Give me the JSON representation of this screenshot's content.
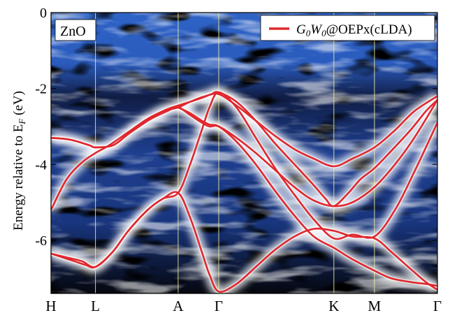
{
  "chart_data": {
    "type": "line",
    "panel_label": "ZnO",
    "ylabel": "Energy relative to E",
    "ylabel_sub": "F",
    "ylabel_unit": " (eV)",
    "ylim": [
      -7.4,
      0
    ],
    "yticks": [
      {
        "value": 0,
        "label": "0"
      },
      {
        "value": -2,
        "label": "-2"
      },
      {
        "value": -4,
        "label": "-4"
      },
      {
        "value": -6,
        "label": "-6"
      }
    ],
    "kpoints": [
      {
        "label": "H",
        "pos": 0.0
      },
      {
        "label": "L",
        "pos": 1.15
      },
      {
        "label": "A",
        "pos": 3.29
      },
      {
        "label": "Γ",
        "pos": 4.34
      },
      {
        "label": "K",
        "pos": 7.32
      },
      {
        "label": "M",
        "pos": 8.37
      },
      {
        "label": "Γ",
        "pos": 10.0
      }
    ],
    "xlim": [
      0,
      10
    ],
    "legend": {
      "position": "top-right",
      "entry": {
        "g": "G",
        "sub0": "0",
        "w": "W",
        "sub1": "0",
        "tail": "@OEPx(cLDA)"
      },
      "color": "#e0282e"
    },
    "series": [
      {
        "x": [
          0,
          0.4,
          0.8,
          1.15,
          1.5,
          2.0,
          2.5,
          3.0,
          3.29,
          3.6,
          3.9,
          4.15,
          4.34,
          4.8,
          5.3,
          5.8,
          6.3,
          6.8,
          7.1,
          7.32,
          7.7,
          8.0,
          8.37,
          8.8,
          9.3,
          9.7,
          10.0
        ],
        "y": [
          -5.2,
          -4.4,
          -3.95,
          -3.7,
          -3.5,
          -3.15,
          -2.8,
          -2.55,
          -2.45,
          -2.35,
          -2.25,
          -2.15,
          -2.1,
          -2.35,
          -2.85,
          -3.45,
          -4.0,
          -4.55,
          -4.9,
          -5.1,
          -4.75,
          -4.4,
          -4.1,
          -3.65,
          -3.1,
          -2.6,
          -2.3
        ]
      },
      {
        "x": [
          0,
          0.5,
          1.0,
          1.15,
          1.6,
          2.0,
          2.5,
          2.9,
          3.29,
          3.6,
          4.0,
          4.34,
          4.8,
          5.3,
          5.8,
          6.3,
          6.8,
          7.32,
          7.8,
          8.37,
          8.9,
          9.4,
          10.0
        ],
        "y": [
          -3.3,
          -3.35,
          -3.5,
          -3.55,
          -3.5,
          -3.2,
          -2.85,
          -2.6,
          -2.5,
          -2.35,
          -2.2,
          -2.15,
          -2.45,
          -2.85,
          -3.25,
          -3.6,
          -3.85,
          -4.05,
          -3.85,
          -3.55,
          -3.1,
          -2.6,
          -2.2
        ]
      },
      {
        "x": [
          0,
          0.5,
          1.0,
          1.15,
          1.6,
          2.0,
          2.5,
          3.0,
          3.29,
          3.6,
          3.9,
          4.1,
          4.34,
          4.8,
          5.3,
          5.8,
          6.3,
          6.8,
          7.32,
          7.8,
          8.37,
          8.9,
          9.4,
          10.0
        ],
        "y": [
          -3.3,
          -3.35,
          -3.5,
          -3.55,
          -3.5,
          -3.2,
          -2.85,
          -2.6,
          -2.5,
          -2.7,
          -2.9,
          -3.0,
          -3.0,
          -3.3,
          -3.7,
          -4.15,
          -4.6,
          -4.95,
          -5.1,
          -5.0,
          -4.6,
          -4.0,
          -3.3,
          -2.3
        ]
      },
      {
        "x": [
          0,
          0.3,
          0.6,
          0.9,
          1.15,
          1.6,
          2.0,
          2.5,
          2.9,
          3.29,
          3.6,
          3.9,
          4.1,
          4.34,
          4.8,
          5.3,
          5.8,
          6.3,
          6.8,
          7.32,
          7.8,
          8.37,
          8.9,
          9.4,
          10.0
        ],
        "y": [
          -6.35,
          -6.45,
          -6.55,
          -6.65,
          -6.7,
          -6.3,
          -5.75,
          -5.2,
          -4.9,
          -4.75,
          -4.0,
          -3.1,
          -2.5,
          -2.1,
          -2.5,
          -3.3,
          -4.1,
          -4.8,
          -5.45,
          -5.95,
          -5.85,
          -5.9,
          -5.2,
          -4.2,
          -2.9
        ]
      },
      {
        "x": [
          0,
          0.4,
          0.8,
          1.15,
          1.6,
          2.0,
          2.5,
          2.9,
          3.29,
          3.6,
          3.9,
          4.1,
          4.34,
          4.8,
          5.3,
          5.8,
          6.3,
          6.8,
          7.32,
          7.8,
          8.37,
          8.8,
          9.3,
          9.7,
          10.0
        ],
        "y": [
          -6.35,
          -6.45,
          -6.55,
          -6.7,
          -6.3,
          -5.75,
          -5.2,
          -4.9,
          -4.75,
          -5.4,
          -6.3,
          -6.9,
          -7.35,
          -7.15,
          -6.7,
          -6.25,
          -5.9,
          -5.7,
          -5.75,
          -5.9,
          -5.95,
          -6.3,
          -6.75,
          -7.1,
          -7.3
        ]
      },
      {
        "x": [
          3.29,
          3.6,
          3.9,
          4.1,
          4.34,
          4.8,
          5.3,
          5.8,
          6.3,
          6.8,
          7.32,
          7.8,
          8.37,
          8.8,
          9.3,
          9.7,
          10.0
        ],
        "y": [
          -2.5,
          -2.65,
          -2.85,
          -2.95,
          -3.0,
          -3.4,
          -4.0,
          -4.7,
          -5.35,
          -5.9,
          -6.2,
          -6.5,
          -6.8,
          -7.0,
          -7.1,
          -7.15,
          -7.2
        ]
      }
    ]
  }
}
